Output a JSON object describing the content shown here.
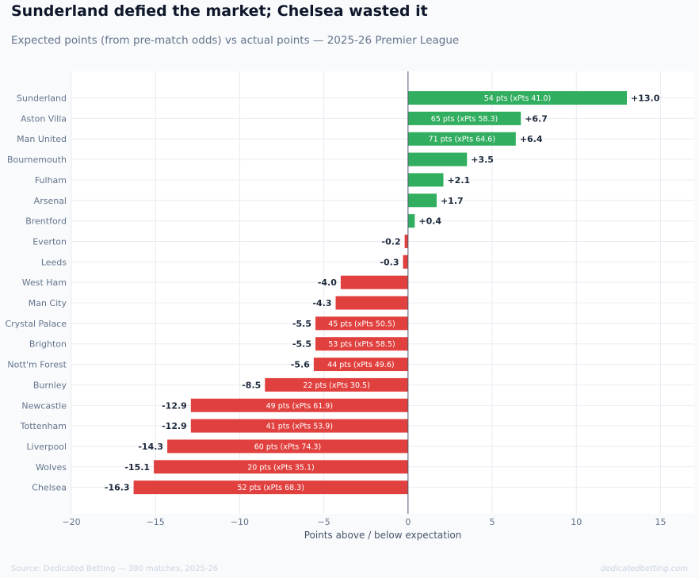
{
  "header": {
    "title": "Sunderland defied the market; Chelsea wasted it",
    "subtitle": "Expected points (from pre-match odds) vs actual points — 2025-26 Premier League"
  },
  "footer": {
    "source": "Source: Dedicated Betting — 380 matches, 2025-26",
    "site": "dedicatedbetting.com"
  },
  "colors": {
    "positive": "#31ae5f",
    "negative": "#e0413f",
    "grid": "#e8ecf1",
    "zero_line": "#475569"
  },
  "chart_data": {
    "type": "bar",
    "orientation": "horizontal",
    "title": "Sunderland defied the market; Chelsea wasted it",
    "subtitle": "Expected points (from pre-match odds) vs actual points — 2025-26 Premier League",
    "xlabel": "Points above / below expectation",
    "ylabel": "",
    "xlim": [
      -20,
      17
    ],
    "xticks": [
      -20,
      -15,
      -10,
      -5,
      0,
      5,
      10,
      15
    ],
    "xtick_labels": [
      "−20",
      "−15",
      "−10",
      "−5",
      "0",
      "5",
      "10",
      "15"
    ],
    "grid": true,
    "categories": [
      "Sunderland",
      "Aston Villa",
      "Man United",
      "Bournemouth",
      "Fulham",
      "Arsenal",
      "Brentford",
      "Everton",
      "Leeds",
      "West Ham",
      "Man City",
      "Crystal Palace",
      "Brighton",
      "Nott'm Forest",
      "Burnley",
      "Newcastle",
      "Tottenham",
      "Liverpool",
      "Wolves",
      "Chelsea"
    ],
    "values": [
      13.0,
      6.7,
      6.4,
      3.5,
      2.1,
      1.7,
      0.4,
      -0.2,
      -0.3,
      -4.0,
      -4.3,
      -5.5,
      -5.5,
      -5.6,
      -8.5,
      -12.9,
      -12.9,
      -14.3,
      -15.1,
      -16.3
    ],
    "value_labels": [
      "+13.0",
      "+6.7",
      "+6.4",
      "+3.5",
      "+2.1",
      "+1.7",
      "+0.4",
      "-0.2",
      "-0.3",
      "-4.0",
      "-4.3",
      "-5.5",
      "-5.5",
      "-5.6",
      "-8.5",
      "-12.9",
      "-12.9",
      "-14.3",
      "-15.1",
      "-16.3"
    ],
    "bar_annotations": [
      "54 pts  (xPts 41.0)",
      "65 pts  (xPts 58.3)",
      "71 pts  (xPts 64.6)",
      "",
      "",
      "",
      "",
      "",
      "",
      "",
      "",
      "45 pts  (xPts 50.5)",
      "53 pts  (xPts 58.5)",
      "44 pts  (xPts 49.6)",
      "22 pts  (xPts 30.5)",
      "49 pts  (xPts 61.9)",
      "41 pts  (xPts 53.9)",
      "60 pts  (xPts 74.3)",
      "20 pts  (xPts 35.1)",
      "52 pts  (xPts 68.3)"
    ]
  }
}
